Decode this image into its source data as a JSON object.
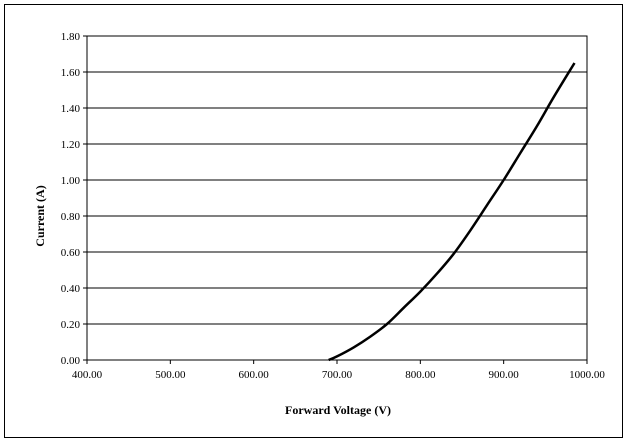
{
  "chart_data": {
    "type": "line",
    "title": "",
    "xlabel": "Forward Voltage (V)",
    "ylabel": "Current (A)",
    "xlim": [
      400,
      1000
    ],
    "ylim": [
      0,
      1.8
    ],
    "x_ticks": [
      "400.00",
      "500.00",
      "600.00",
      "700.00",
      "800.00",
      "900.00",
      "1000.00"
    ],
    "y_ticks": [
      "0.00",
      "0.20",
      "0.40",
      "0.60",
      "0.80",
      "1.00",
      "1.20",
      "1.40",
      "1.60",
      "1.80"
    ],
    "grid": "horizontal",
    "legend": "none",
    "series": [
      {
        "x": [
          690,
          700,
          720,
          740,
          760,
          780,
          800,
          820,
          840,
          860,
          880,
          900,
          920,
          940,
          960,
          985
        ],
        "y": [
          0.0,
          0.02,
          0.07,
          0.13,
          0.2,
          0.29,
          0.38,
          0.48,
          0.59,
          0.72,
          0.86,
          1.0,
          1.15,
          1.3,
          1.46,
          1.65
        ]
      }
    ],
    "colors": {
      "line": "#000000",
      "grid": "#000000",
      "frame": "#000000"
    }
  }
}
